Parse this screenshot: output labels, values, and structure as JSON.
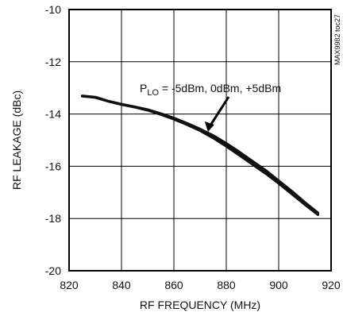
{
  "chart_data": {
    "type": "line",
    "title": "",
    "xlabel": "RF FREQUENCY (MHz)",
    "ylabel": "RF LEAKAGE (dBc)",
    "xlim": [
      820,
      920
    ],
    "ylim": [
      -20,
      -10
    ],
    "xticks": [
      820,
      840,
      860,
      880,
      900,
      920
    ],
    "yticks": [
      -20,
      -18,
      -16,
      -14,
      -12,
      -10
    ],
    "grid": true,
    "figure_code": "MAX9982 toc27",
    "annotation": {
      "prefix": "P",
      "subscript": "LO",
      "text": " = -5dBm, 0dBm, +5dBm"
    },
    "series": [
      {
        "x": [
          825,
          830,
          835,
          840,
          845,
          850,
          855,
          860,
          865,
          870,
          875,
          880,
          885,
          890,
          895,
          900,
          905,
          910,
          915
        ],
        "y": [
          -13.3,
          -13.35,
          -13.5,
          -13.62,
          -13.72,
          -13.83,
          -13.98,
          -14.15,
          -14.35,
          -14.57,
          -14.82,
          -15.12,
          -15.45,
          -15.8,
          -16.15,
          -16.55,
          -16.95,
          -17.38,
          -17.78
        ]
      },
      {
        "x": [
          825,
          830,
          835,
          840,
          845,
          850,
          855,
          860,
          865,
          870,
          875,
          880,
          885,
          890,
          895,
          900,
          905,
          910,
          915
        ],
        "y": [
          -13.32,
          -13.37,
          -13.52,
          -13.64,
          -13.74,
          -13.86,
          -14.02,
          -14.2,
          -14.41,
          -14.64,
          -14.92,
          -15.24,
          -15.58,
          -15.93,
          -16.28,
          -16.66,
          -17.06,
          -17.47,
          -17.86
        ]
      },
      {
        "x": [
          825,
          830,
          835,
          840,
          845,
          850,
          855,
          860,
          865,
          870,
          875,
          880,
          885,
          890,
          895,
          900,
          905,
          910,
          915
        ],
        "y": [
          -13.31,
          -13.36,
          -13.51,
          -13.63,
          -13.73,
          -13.85,
          -14.0,
          -14.18,
          -14.38,
          -14.61,
          -14.87,
          -15.18,
          -15.52,
          -15.87,
          -16.22,
          -16.61,
          -17.01,
          -17.43,
          -17.83
        ]
      }
    ]
  }
}
